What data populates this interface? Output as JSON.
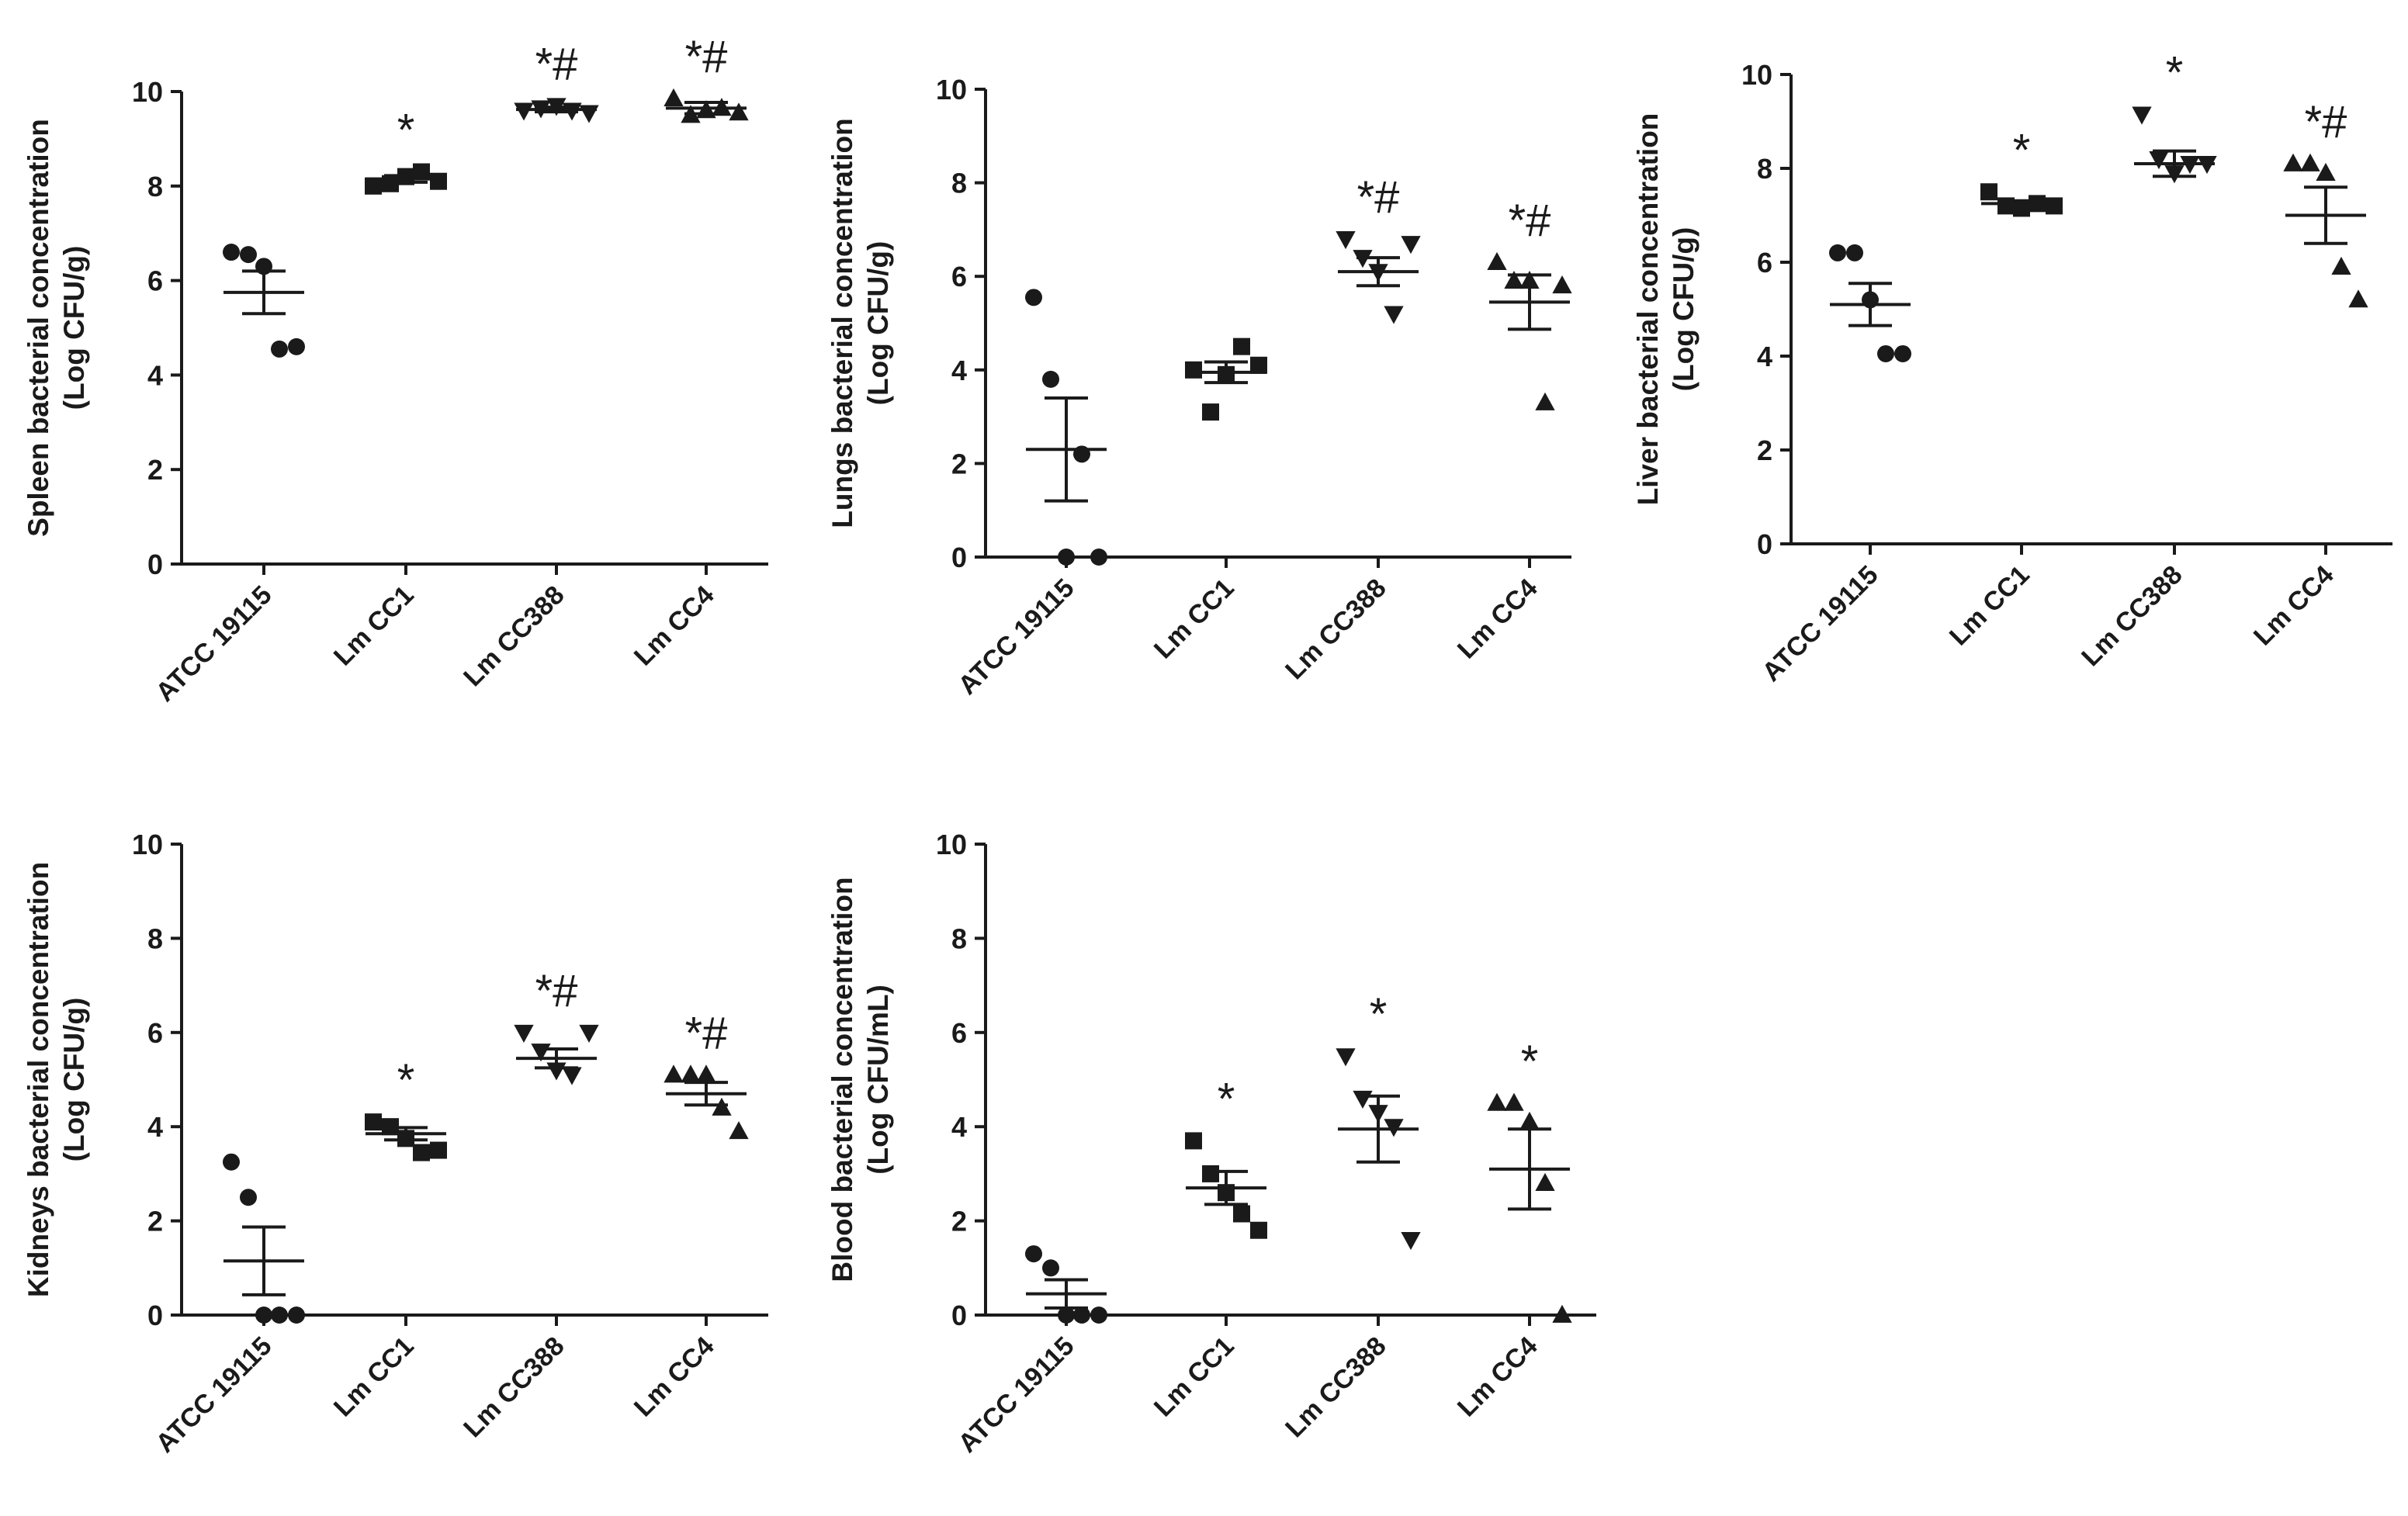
{
  "chart_data": [
    {
      "type": "scatter",
      "title": "",
      "ylabel": [
        "Spleen bacterial concentration",
        "(Log CFU/g)"
      ],
      "ylim": [
        0,
        10
      ],
      "yticks": [
        "0",
        "2",
        "4",
        "6",
        "8",
        "10"
      ],
      "categories": [
        "ATCC 19115",
        "Lm CC1",
        "Lm CC388",
        "Lm CC4"
      ],
      "groups": [
        {
          "name": "ATCC 19115",
          "marker": "circle",
          "points": [
            6.6,
            6.55,
            6.3,
            4.55,
            4.6
          ],
          "mean": 5.75,
          "sem": 0.45,
          "sig": ""
        },
        {
          "name": "Lm CC1",
          "marker": "square",
          "points": [
            8.0,
            8.05,
            8.2,
            8.3,
            8.1
          ],
          "mean": 8.15,
          "sem": 0.07,
          "sig": "*"
        },
        {
          "name": "Lm CC388",
          "marker": "triangle-down",
          "points": [
            9.6,
            9.65,
            9.7,
            9.6,
            9.55
          ],
          "mean": 9.62,
          "sem": 0.05,
          "sig": "*#"
        },
        {
          "name": "Lm CC4",
          "marker": "triangle-up",
          "points": [
            9.85,
            9.5,
            9.6,
            9.65,
            9.55
          ],
          "mean": 9.65,
          "sem": 0.12,
          "sig": "*#"
        }
      ]
    },
    {
      "type": "scatter",
      "title": "",
      "ylabel": [
        "Lungs bacterial concentration",
        "(Log CFU/g)"
      ],
      "ylim": [
        0,
        10
      ],
      "yticks": [
        "0",
        "2",
        "4",
        "6",
        "8",
        "10"
      ],
      "categories": [
        "ATCC 19115",
        "Lm CC1",
        "Lm CC388",
        "Lm CC4"
      ],
      "groups": [
        {
          "name": "ATCC 19115",
          "marker": "circle",
          "points": [
            5.55,
            3.8,
            0.0,
            2.2,
            0.0
          ],
          "mean": 2.3,
          "sem": 1.1,
          "sig": ""
        },
        {
          "name": "Lm CC1",
          "marker": "square",
          "points": [
            4.0,
            3.1,
            3.9,
            4.5,
            4.1
          ],
          "mean": 3.95,
          "sem": 0.22,
          "sig": ""
        },
        {
          "name": "Lm CC388",
          "marker": "triangle-down",
          "points": [
            6.8,
            6.4,
            6.1,
            5.2,
            6.7
          ],
          "mean": 6.1,
          "sem": 0.3,
          "sig": "*#"
        },
        {
          "name": "Lm CC4",
          "marker": "triangle-up",
          "points": [
            6.3,
            5.9,
            5.9,
            3.3,
            5.8
          ],
          "mean": 5.45,
          "sem": 0.58,
          "sig": "*#"
        }
      ]
    },
    {
      "type": "scatter",
      "title": "",
      "ylabel": [
        "Liver bacterial concentration",
        "(Log CFU/g)"
      ],
      "ylim": [
        0,
        10
      ],
      "yticks": [
        "0",
        "2",
        "4",
        "6",
        "8",
        "10"
      ],
      "categories": [
        "ATCC 19115",
        "Lm CC1",
        "Lm CC388",
        "Lm CC4"
      ],
      "groups": [
        {
          "name": "ATCC 19115",
          "marker": "circle",
          "points": [
            6.2,
            6.2,
            5.2,
            4.05,
            4.05
          ],
          "mean": 5.1,
          "sem": 0.45,
          "sig": ""
        },
        {
          "name": "Lm CC1",
          "marker": "square",
          "points": [
            7.5,
            7.2,
            7.15,
            7.25,
            7.2
          ],
          "mean": 7.25,
          "sem": 0.06,
          "sig": "*"
        },
        {
          "name": "Lm CC388",
          "marker": "triangle-down",
          "points": [
            9.15,
            8.2,
            7.9,
            8.1,
            8.1
          ],
          "mean": 8.1,
          "sem": 0.27,
          "sig": "*"
        },
        {
          "name": "Lm CC4",
          "marker": "triangle-up",
          "points": [
            8.1,
            8.1,
            7.9,
            5.9,
            5.2
          ],
          "mean": 7.0,
          "sem": 0.6,
          "sig": "*#"
        }
      ]
    },
    {
      "type": "scatter",
      "title": "",
      "ylabel": [
        "Kidneys bacterial concentration",
        "(Log CFU/g)"
      ],
      "ylim": [
        0,
        10
      ],
      "yticks": [
        "0",
        "2",
        "4",
        "6",
        "8",
        "10"
      ],
      "categories": [
        "ATCC 19115",
        "Lm CC1",
        "Lm CC388",
        "Lm CC4"
      ],
      "groups": [
        {
          "name": "ATCC 19115",
          "marker": "circle",
          "points": [
            3.25,
            2.5,
            0.0,
            0.0,
            0.0
          ],
          "mean": 1.15,
          "sem": 0.72,
          "sig": ""
        },
        {
          "name": "Lm CC1",
          "marker": "square",
          "points": [
            4.1,
            4.0,
            3.75,
            3.45,
            3.5
          ],
          "mean": 3.85,
          "sem": 0.13,
          "sig": "*"
        },
        {
          "name": "Lm CC388",
          "marker": "triangle-down",
          "points": [
            6.0,
            5.6,
            5.2,
            5.1,
            6.0
          ],
          "mean": 5.45,
          "sem": 0.2,
          "sig": "*#"
        },
        {
          "name": "Lm CC4",
          "marker": "triangle-up",
          "points": [
            5.1,
            5.1,
            5.1,
            4.4,
            3.9
          ],
          "mean": 4.7,
          "sem": 0.24,
          "sig": "*#"
        }
      ]
    },
    {
      "type": "scatter",
      "title": "",
      "ylabel": [
        "Blood bacterial concentration",
        "(Log CFU/mL)"
      ],
      "ylim": [
        0,
        10
      ],
      "yticks": [
        "0",
        "2",
        "4",
        "6",
        "8",
        "10"
      ],
      "categories": [
        "ATCC 19115",
        "Lm CC1",
        "Lm CC388",
        "Lm CC4"
      ],
      "groups": [
        {
          "name": "ATCC 19115",
          "marker": "circle",
          "points": [
            1.3,
            1.0,
            0.0,
            0.0,
            0.0
          ],
          "mean": 0.45,
          "sem": 0.3,
          "sig": ""
        },
        {
          "name": "Lm CC1",
          "marker": "square",
          "points": [
            3.7,
            3.0,
            2.6,
            2.15,
            1.8
          ],
          "mean": 2.7,
          "sem": 0.35,
          "sig": "*"
        },
        {
          "name": "Lm CC388",
          "marker": "triangle-down",
          "points": [
            5.5,
            4.6,
            4.3,
            4.0,
            1.6
          ],
          "mean": 3.95,
          "sem": 0.7,
          "sig": "*"
        },
        {
          "name": "Lm CC4",
          "marker": "triangle-up",
          "points": [
            4.5,
            4.5,
            4.1,
            2.8,
            0.0
          ],
          "mean": 3.1,
          "sem": 0.85,
          "sig": "*"
        }
      ]
    }
  ]
}
